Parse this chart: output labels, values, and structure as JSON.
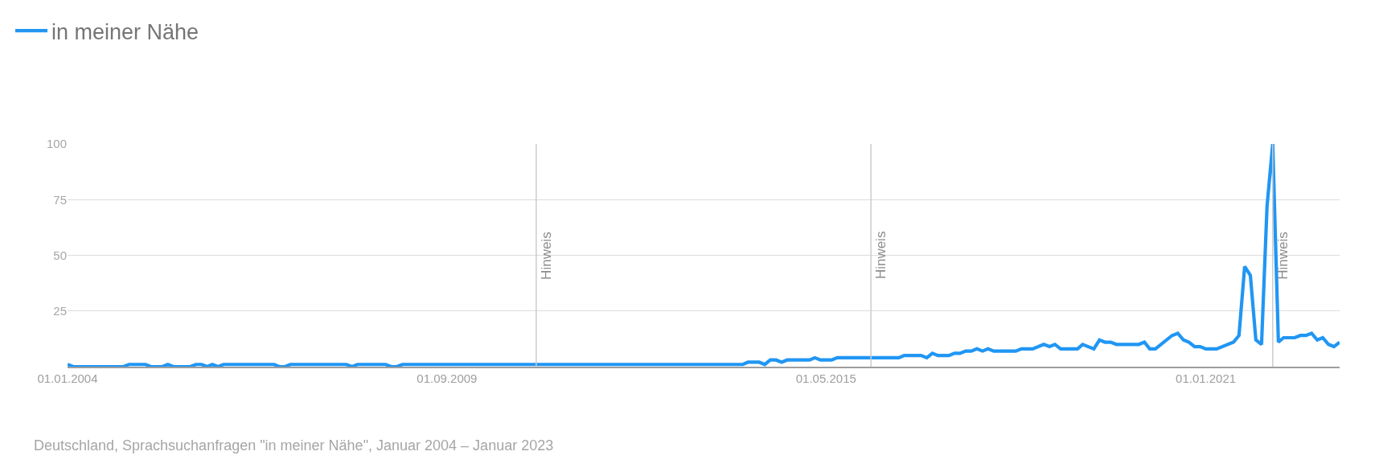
{
  "chart_data": {
    "type": "line",
    "x": [
      "2004-01",
      "2004-02",
      "2004-11",
      "2004-12",
      "2005-03",
      "2005-04",
      "2005-06",
      "2005-07",
      "2005-08",
      "2005-11",
      "2005-12",
      "2006-01",
      "2006-02",
      "2006-03",
      "2006-04",
      "2006-05",
      "2007-02",
      "2007-03",
      "2007-04",
      "2007-05",
      "2008-03",
      "2008-04",
      "2008-05",
      "2008-10",
      "2008-11",
      "2008-12",
      "2009-01",
      "2014-02",
      "2014-03",
      "2014-05",
      "2014-06",
      "2014-07",
      "2014-08",
      "2014-09",
      "2014-10",
      "2015-02",
      "2015-03",
      "2015-04",
      "2015-06",
      "2015-07",
      "2016-06",
      "2016-07",
      "2016-10",
      "2016-11",
      "2016-12",
      "2017-01",
      "2017-03",
      "2017-04",
      "2017-05",
      "2017-06",
      "2017-07",
      "2017-08",
      "2017-09",
      "2017-10",
      "2017-11",
      "2018-03",
      "2018-04",
      "2018-06",
      "2018-08",
      "2018-09",
      "2018-10",
      "2018-11",
      "2019-02",
      "2019-03",
      "2019-05",
      "2019-06",
      "2019-07",
      "2019-08",
      "2019-09",
      "2020-01",
      "2020-02",
      "2020-03",
      "2020-04",
      "2020-07",
      "2020-08",
      "2020-09",
      "2020-10",
      "2020-11",
      "2020-12",
      "2021-01",
      "2021-03",
      "2021-06",
      "2021-07",
      "2021-08",
      "2021-09",
      "2021-10",
      "2021-11",
      "2021-12",
      "2022-01",
      "2022-02",
      "2022-03",
      "2022-05",
      "2022-06",
      "2022-07",
      "2022-08",
      "2022-09",
      "2022-10",
      "2022-11",
      "2022-12",
      "2023-01"
    ],
    "series": [
      {
        "name": "in meiner Nähe",
        "color": "#2196f3",
        "values": [
          1,
          0,
          0,
          1,
          1,
          0,
          0,
          1,
          0,
          0,
          1,
          1,
          0,
          1,
          0,
          1,
          1,
          0,
          0,
          1,
          1,
          0,
          1,
          1,
          0,
          0,
          1,
          1,
          2,
          2,
          1,
          3,
          3,
          2,
          3,
          3,
          4,
          3,
          3,
          4,
          4,
          5,
          5,
          4,
          6,
          5,
          5,
          6,
          6,
          7,
          7,
          8,
          7,
          8,
          7,
          7,
          8,
          8,
          10,
          9,
          10,
          8,
          8,
          10,
          8,
          12,
          11,
          11,
          10,
          10,
          11,
          8,
          8,
          14,
          15,
          12,
          11,
          9,
          9,
          8,
          8,
          11,
          14,
          45,
          41,
          12,
          10,
          72,
          100,
          11,
          13,
          13,
          14,
          14,
          15,
          12,
          13,
          10,
          9,
          11
        ]
      }
    ],
    "xlim": [
      "2004-01-01",
      "2023-01-01"
    ],
    "xticks": [
      {
        "value": "2004-01-01",
        "label": "01.01.2004"
      },
      {
        "value": "2009-09-01",
        "label": "01.09.2009"
      },
      {
        "value": "2015-05-01",
        "label": "01.05.2015"
      },
      {
        "value": "2021-01-01",
        "label": "01.01.2021"
      }
    ],
    "ylim": [
      0,
      100
    ],
    "yticks": [
      25,
      50,
      75,
      100
    ],
    "ref_lines": [
      {
        "axis": "x",
        "value": "2011-01-01",
        "label": "Hinweis",
        "color": "#cccccc"
      },
      {
        "axis": "x",
        "value": "2016-01-01",
        "label": "Hinweis",
        "color": "#cccccc"
      },
      {
        "axis": "x",
        "value": "2022-01-01",
        "label": "Hinweis",
        "color": "#cccccc"
      }
    ],
    "annotations": [
      "Deutschland, Sprachsuchanfragen \"in meiner Nähe\", Januar 2004 – Januar 2023"
    ],
    "grid": "y",
    "legend": "top left",
    "line_style": "solid"
  }
}
